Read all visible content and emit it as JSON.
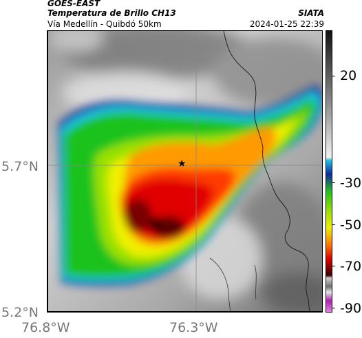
{
  "header": {
    "satellite": "GOES-EAST",
    "product": "Temperatura de Brillo CH13",
    "region": "Vía Medellín - Quibdó 50km",
    "source": "SIATA",
    "datetime": "2024-01-25 22:39"
  },
  "map": {
    "lat_ticks": [
      "5.7°N",
      "5.2°N"
    ],
    "lon_ticks": [
      "76.8°W",
      "76.3°W"
    ],
    "marker": "★",
    "marker_icon": "star-icon"
  },
  "colorbar": {
    "ticks": [
      "20",
      "-30",
      "-50",
      "-70",
      "-90"
    ],
    "colors": {
      "black": "#111111",
      "gray": "#8a8a8a",
      "white": "#f2f2f2",
      "cyan": "#1ec8e6",
      "blue": "#1326a0",
      "green": "#1ec21e",
      "yellow": "#f0f000",
      "orange": "#ff7a00",
      "red": "#e00000",
      "darkred": "#3a0000",
      "magenta": "#b020b0"
    }
  }
}
